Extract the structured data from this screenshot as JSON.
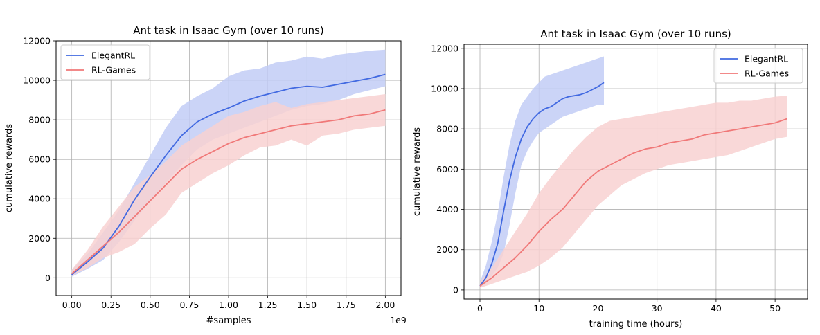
{
  "chart_data": [
    {
      "type": "line",
      "title": "Ant task in Isaac Gym (over 10 runs)",
      "xlabel": "#samples",
      "ylabel": "cumulative rewards",
      "x_offset_text": "1e9",
      "xlim": [
        -0.1,
        2.1
      ],
      "ylim": [
        -900,
        12000
      ],
      "xticks": [
        0.0,
        0.25,
        0.5,
        0.75,
        1.0,
        1.25,
        1.5,
        1.75,
        2.0
      ],
      "xtick_labels": [
        "0.00",
        "0.25",
        "0.50",
        "0.75",
        "1.00",
        "1.25",
        "1.50",
        "1.75",
        "2.00"
      ],
      "yticks": [
        0,
        2000,
        4000,
        6000,
        8000,
        10000,
        12000
      ],
      "ytick_labels": [
        "0",
        "2000",
        "4000",
        "6000",
        "8000",
        "10000",
        "12000"
      ],
      "grid": true,
      "legend_position": "upper-left",
      "series": [
        {
          "name": "ElegantRL",
          "color": "#4169e1",
          "band_color": "#c2cdf6",
          "x": [
            0.0,
            0.1,
            0.2,
            0.3,
            0.4,
            0.5,
            0.6,
            0.7,
            0.8,
            0.9,
            1.0,
            1.1,
            1.2,
            1.3,
            1.4,
            1.5,
            1.6,
            1.7,
            1.8,
            1.9,
            2.0
          ],
          "mean": [
            150,
            800,
            1500,
            2600,
            3950,
            5100,
            6200,
            7200,
            7900,
            8300,
            8600,
            8950,
            9200,
            9400,
            9600,
            9700,
            9650,
            9800,
            9950,
            10100,
            10300
          ],
          "upper": [
            400,
            1200,
            2300,
            3400,
            4800,
            6200,
            7600,
            8700,
            9200,
            9600,
            10200,
            10500,
            10600,
            10900,
            11000,
            11200,
            11100,
            11300,
            11400,
            11500,
            11550
          ],
          "lower": [
            50,
            450,
            900,
            1800,
            2900,
            3900,
            4800,
            5700,
            6500,
            7000,
            7300,
            7600,
            7900,
            8200,
            8500,
            8700,
            8800,
            9000,
            9300,
            9500,
            9700
          ]
        },
        {
          "name": "RL-Games",
          "color": "#f07878",
          "band_color": "#f8d1d1",
          "x": [
            0.0,
            0.1,
            0.2,
            0.3,
            0.4,
            0.5,
            0.6,
            0.7,
            0.8,
            0.9,
            1.0,
            1.1,
            1.2,
            1.3,
            1.4,
            1.5,
            1.6,
            1.7,
            1.8,
            1.9,
            2.0
          ],
          "mean": [
            200,
            900,
            1600,
            2300,
            3100,
            3900,
            4700,
            5500,
            6000,
            6400,
            6800,
            7100,
            7300,
            7500,
            7700,
            7800,
            7900,
            8000,
            8200,
            8300,
            8500
          ],
          "upper": [
            400,
            1400,
            2600,
            3600,
            4600,
            5200,
            5900,
            6700,
            7200,
            7700,
            8200,
            8400,
            8700,
            8900,
            8600,
            8800,
            8900,
            9000,
            9100,
            9200,
            9300
          ],
          "lower": [
            100,
            500,
            1000,
            1300,
            1700,
            2500,
            3200,
            4300,
            4800,
            5300,
            5700,
            6200,
            6600,
            6700,
            7000,
            6700,
            7200,
            7300,
            7500,
            7600,
            7700
          ]
        }
      ]
    },
    {
      "type": "line",
      "title": "Ant task in Isaac Gym (over 10 runs)",
      "xlabel": "training time (hours)",
      "ylabel": "cumulative rewards",
      "xlim": [
        -2.7,
        55.5
      ],
      "ylim": [
        -450,
        12200
      ],
      "xticks": [
        0,
        10,
        20,
        30,
        40,
        50
      ],
      "xtick_labels": [
        "0",
        "10",
        "20",
        "30",
        "40",
        "50"
      ],
      "yticks": [
        0,
        2000,
        4000,
        6000,
        8000,
        10000,
        12000
      ],
      "ytick_labels": [
        "0",
        "2000",
        "4000",
        "6000",
        "8000",
        "10000",
        "12000"
      ],
      "grid": true,
      "legend_position": "upper-right",
      "series": [
        {
          "name": "ElegantRL",
          "color": "#4169e1",
          "band_color": "#c2cdf6",
          "x": [
            0,
            1,
            2,
            3,
            4,
            5,
            6,
            7,
            8,
            9,
            10,
            11,
            12,
            13,
            14,
            15,
            16,
            17,
            18,
            19,
            20,
            21
          ],
          "mean": [
            200,
            600,
            1300,
            2300,
            3900,
            5400,
            6600,
            7500,
            8100,
            8500,
            8800,
            9000,
            9100,
            9300,
            9500,
            9600,
            9650,
            9700,
            9800,
            9950,
            10100,
            10300
          ],
          "upper": [
            400,
            1200,
            2400,
            3800,
            5600,
            7200,
            8400,
            9200,
            9600,
            10000,
            10300,
            10600,
            10700,
            10800,
            10900,
            11000,
            11100,
            11200,
            11300,
            11400,
            11500,
            11600
          ],
          "lower": [
            100,
            300,
            700,
            1100,
            1800,
            3200,
            4800,
            6200,
            6900,
            7400,
            7800,
            8000,
            8200,
            8400,
            8600,
            8700,
            8800,
            8900,
            9000,
            9100,
            9200,
            9200
          ]
        },
        {
          "name": "RL-Games",
          "color": "#f07878",
          "band_color": "#f8d1d1",
          "x": [
            0,
            2,
            4,
            6,
            8,
            10,
            12,
            14,
            16,
            18,
            20,
            22,
            24,
            26,
            28,
            30,
            32,
            34,
            36,
            38,
            40,
            42,
            44,
            46,
            48,
            50,
            52
          ],
          "mean": [
            200,
            600,
            1100,
            1600,
            2200,
            2900,
            3500,
            4000,
            4700,
            5400,
            5900,
            6200,
            6500,
            6800,
            7000,
            7100,
            7300,
            7400,
            7500,
            7700,
            7800,
            7900,
            8000,
            8100,
            8200,
            8300,
            8500
          ],
          "upper": [
            400,
            1100,
            2000,
            2900,
            3800,
            4800,
            5600,
            6300,
            7000,
            7600,
            8100,
            8400,
            8500,
            8600,
            8700,
            8800,
            8900,
            9000,
            9100,
            9200,
            9300,
            9300,
            9400,
            9400,
            9500,
            9600,
            9650
          ],
          "lower": [
            100,
            300,
            500,
            700,
            900,
            1200,
            1600,
            2100,
            2800,
            3500,
            4200,
            4700,
            5200,
            5500,
            5800,
            6000,
            6200,
            6300,
            6400,
            6500,
            6600,
            6700,
            6900,
            7100,
            7300,
            7500,
            7600
          ]
        }
      ]
    }
  ]
}
